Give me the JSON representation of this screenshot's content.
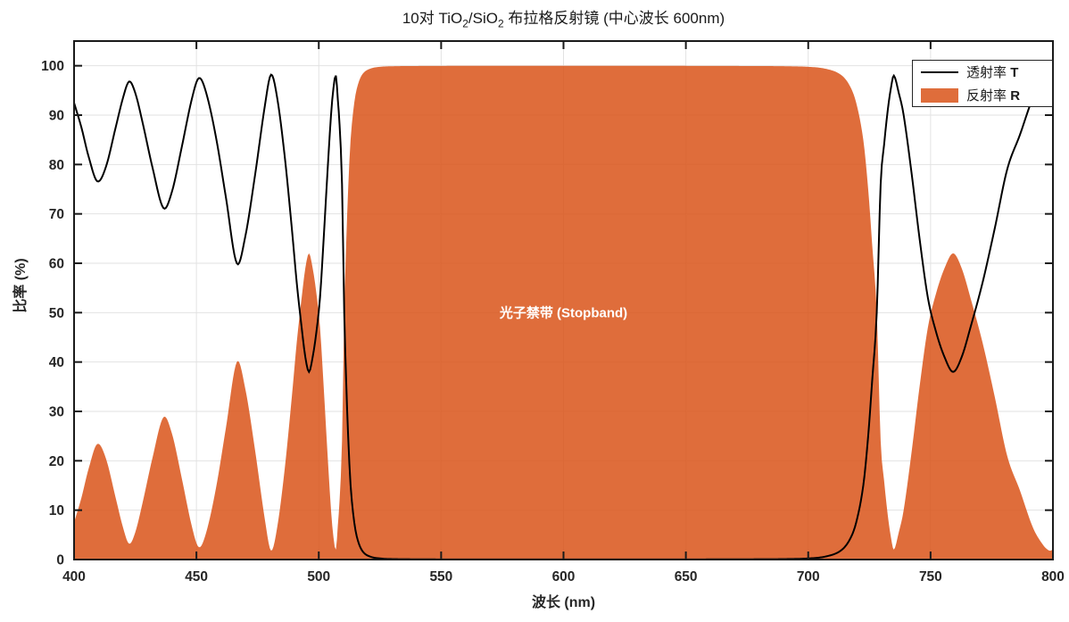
{
  "figure": {
    "title_parts": [
      "10对 TiO",
      "2",
      "/SiO",
      "2",
      " 布拉格反射镜 (中心波长 600nm)"
    ]
  },
  "legend": {
    "entries": [
      {
        "label": "透射率",
        "symbol": "T",
        "swatch": "black-line"
      },
      {
        "label": "反射率",
        "symbol": "R",
        "swatch": "orange-patch"
      }
    ]
  },
  "style": {
    "line_color": "#000000",
    "fill_color": "#D95319",
    "fill_alpha": 0.85,
    "grid_color": "#E2E2E2",
    "axis_color": "#1A1A1A",
    "tick_text_color": "#262626",
    "annotation_color": "#FFFFFF"
  },
  "chart_data": {
    "type": "line",
    "title": "10对 TiO2/SiO2 布拉格反射镜 (中心波长 600nm)",
    "xlabel": "波长 (nm)",
    "ylabel": "比率 (%)",
    "xlim": [
      400,
      800
    ],
    "ylim": [
      0,
      105
    ],
    "xticks": [
      400,
      450,
      500,
      550,
      600,
      650,
      700,
      750,
      800
    ],
    "yticks": [
      0,
      10,
      20,
      30,
      40,
      50,
      60,
      70,
      80,
      90,
      100
    ],
    "grid": true,
    "legend_position": "top-right",
    "annotation": {
      "text": "光子禁带 (Stopband)",
      "x_nm": 600,
      "y_pct": 50
    },
    "series": [
      {
        "name": "透射率 T",
        "type": "line",
        "color": "#000000",
        "x": [
          400,
          403,
          406,
          409.5,
          413,
          417,
          420,
          422.5,
          425,
          428,
          432,
          436.5,
          440,
          444,
          448,
          451,
          454,
          458,
          462,
          466.5,
          470,
          474,
          478,
          480.5,
          483,
          486,
          489,
          491,
          493,
          494.5,
          496,
          497.5,
          499,
          500.5,
          502,
          503.5,
          505,
          506,
          507,
          507.8,
          508.5,
          509.5,
          510.4,
          511.2,
          512,
          513,
          514.5,
          516,
          518,
          521,
          525,
          530,
          540,
          560,
          600,
          640,
          680,
          691,
          700,
          707,
          713,
          716.7,
          719.6,
          722.5,
          724.5,
          726.1,
          728,
          729.6,
          731,
          732.5,
          733.8,
          735,
          737,
          739,
          742.3,
          745.5,
          748.9,
          752.3,
          755.7,
          759.2,
          762.7,
          766.3,
          771.2,
          776.2,
          781.3,
          786.5,
          791.8,
          795.9,
          798.5,
          800
        ],
        "y": [
          92.5,
          87.5,
          81.5,
          76.6,
          79.5,
          87.5,
          93.5,
          96.8,
          94.5,
          88.5,
          79.5,
          71.2,
          74.5,
          83.5,
          93,
          97.5,
          94.5,
          85.5,
          73.5,
          60,
          65.5,
          78,
          92,
          98.2,
          93.5,
          82,
          67,
          56,
          47,
          41,
          38,
          41,
          46,
          53,
          65,
          78,
          90,
          95.5,
          98,
          93,
          88,
          76,
          50,
          36,
          25,
          15,
          7.5,
          3.8,
          1.6,
          0.6,
          0.22,
          0.1,
          0.05,
          0.02,
          0.015,
          0.02,
          0.06,
          0.1,
          0.22,
          0.6,
          1.7,
          3.8,
          7.5,
          15,
          25,
          36,
          50,
          76,
          84,
          91,
          95.5,
          98,
          94.5,
          90,
          78,
          65,
          53,
          46,
          41,
          38,
          41,
          47,
          56,
          67,
          79,
          86,
          93.5,
          97,
          98.2,
          98
        ]
      },
      {
        "name": "反射率 R",
        "type": "area",
        "color": "#D95319",
        "alpha": 0.85,
        "derived": "R = 100 - T (lossless mirror)"
      }
    ]
  }
}
